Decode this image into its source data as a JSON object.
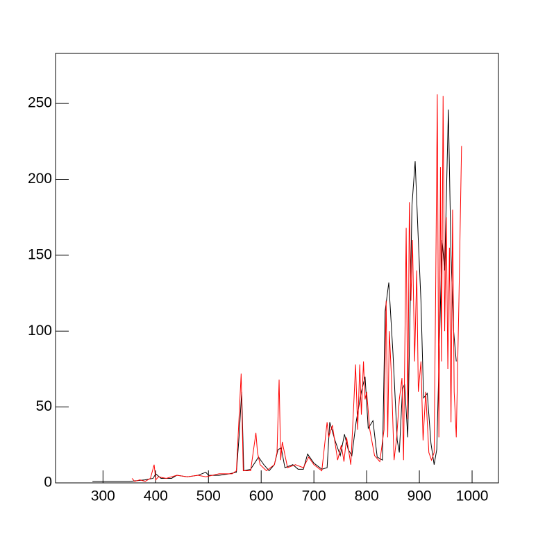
{
  "chart_data": {
    "type": "line",
    "xlim": [
      210,
      1050
    ],
    "ylim": [
      0,
      283
    ],
    "xticks": [
      300,
      400,
      500,
      600,
      700,
      800,
      900,
      1000
    ],
    "yticks": [
      0,
      50,
      100,
      150,
      200,
      250
    ],
    "series": [
      {
        "color": "#000000",
        "x": [
          280,
          350,
          380,
          395,
          400,
          410,
          430,
          440,
          460,
          480,
          495,
          500,
          520,
          540,
          553,
          558,
          563,
          567,
          580,
          595,
          605,
          615,
          625,
          632,
          638,
          645,
          660,
          670,
          680,
          688,
          700,
          715,
          725,
          730,
          740,
          750,
          758,
          765,
          772,
          780,
          790,
          797,
          803,
          812,
          820,
          830,
          835,
          842,
          850,
          858,
          862,
          868,
          872,
          878,
          886,
          892,
          898,
          903,
          908,
          915,
          922,
          928,
          933,
          938,
          943,
          948,
          955,
          960,
          965,
          970
        ],
        "values": [
          1,
          1,
          2,
          3,
          6,
          3,
          3,
          5,
          4,
          5,
          7,
          5,
          5,
          6,
          7,
          30,
          60,
          8,
          9,
          17,
          12,
          8,
          12,
          22,
          23,
          10,
          12,
          9,
          9,
          19,
          13,
          9,
          10,
          40,
          28,
          18,
          32,
          22,
          18,
          40,
          60,
          70,
          36,
          41,
          17,
          15,
          113,
          132,
          85,
          28,
          20,
          62,
          65,
          30,
          183,
          212,
          160,
          120,
          56,
          59,
          26,
          12,
          22,
          90,
          160,
          140,
          246,
          150,
          100,
          80
        ]
      },
      {
        "color": "#ff0000",
        "x": [
          355,
          360,
          370,
          380,
          390,
          397,
          400,
          405,
          420,
          440,
          460,
          480,
          495,
          520,
          545,
          553,
          559,
          562,
          566,
          580,
          590,
          593,
          598,
          610,
          625,
          630,
          634,
          637,
          640,
          650,
          665,
          680,
          690,
          700,
          715,
          725,
          728,
          735,
          745,
          752,
          757,
          762,
          770,
          776,
          779,
          783,
          787,
          790,
          794,
          797,
          800,
          806,
          815,
          825,
          833,
          837,
          840,
          843,
          847,
          852,
          857,
          862,
          867,
          870,
          875,
          878,
          881,
          884,
          887,
          891,
          895,
          898,
          903,
          907,
          912,
          918,
          923,
          928,
          931,
          934,
          937,
          940,
          942,
          945,
          948,
          951,
          954,
          957,
          960,
          963,
          966,
          970,
          975,
          980
        ],
        "values": [
          3,
          1,
          2,
          1,
          3,
          12,
          2,
          4,
          3,
          5,
          4,
          5,
          4,
          6,
          6,
          8,
          50,
          72,
          8,
          8,
          33,
          20,
          12,
          8,
          12,
          20,
          68,
          15,
          27,
          10,
          12,
          10,
          17,
          12,
          8,
          40,
          30,
          38,
          15,
          25,
          14,
          30,
          12,
          55,
          78,
          35,
          78,
          45,
          80,
          55,
          60,
          35,
          18,
          14,
          35,
          120,
          30,
          100,
          70,
          15,
          30,
          55,
          69,
          15,
          168,
          42,
          185,
          120,
          160,
          80,
          140,
          60,
          80,
          28,
          60,
          20,
          15,
          20,
          130,
          256,
          30,
          208,
          80,
          255,
          100,
          175,
          75,
          155,
          40,
          180,
          60,
          30,
          120,
          222
        ]
      }
    ]
  }
}
